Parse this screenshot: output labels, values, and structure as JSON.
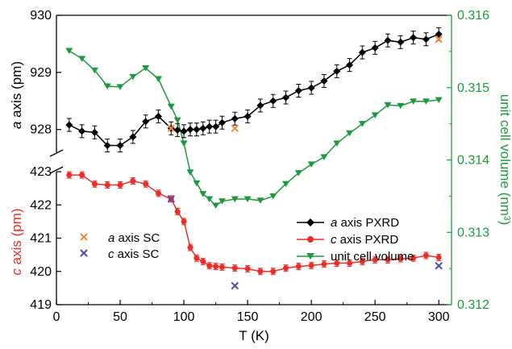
{
  "chart_data": {
    "type": "line",
    "xlabel": "T (K)",
    "xlim": [
      0,
      310
    ],
    "x_ticks": [
      "0",
      "50",
      "100",
      "150",
      "200",
      "250",
      "300"
    ],
    "panels": {
      "a_axis": {
        "ylabel_italic": "a",
        "ylabel_rest": " axis (pm)",
        "ylim": [
          927.6,
          930
        ],
        "y_ticks": [
          "928",
          "929",
          "930"
        ]
      },
      "c_axis": {
        "ylabel_italic": "c",
        "ylabel_rest": " axis (pm)",
        "ylim": [
          419,
          423
        ],
        "y_ticks": [
          "419",
          "420",
          "421",
          "422",
          "423"
        ]
      }
    },
    "right_axis": {
      "ylabel": "unit cell volume (nm³)",
      "ylim": [
        0.312,
        0.316
      ],
      "y_ticks": [
        "0.312",
        "0.313",
        "0.314",
        "0.315",
        "0.316"
      ]
    },
    "series": [
      {
        "name_italic": "a",
        "name_rest": " axis PXRD",
        "axis": "a_axis",
        "color": "#000000",
        "marker": "diamond",
        "x": [
          10,
          20,
          30,
          40,
          50,
          60,
          70,
          80,
          90,
          95,
          100,
          105,
          110,
          115,
          120,
          125,
          130,
          140,
          150,
          160,
          170,
          180,
          190,
          200,
          210,
          220,
          230,
          240,
          250,
          260,
          270,
          280,
          290,
          300
        ],
        "y": [
          928.08,
          927.97,
          927.95,
          927.72,
          927.72,
          927.87,
          928.14,
          928.23,
          928.02,
          927.99,
          927.97,
          928.0,
          928.0,
          928.02,
          928.05,
          928.05,
          928.12,
          928.19,
          928.23,
          928.42,
          928.5,
          928.56,
          928.68,
          928.73,
          928.85,
          929.02,
          929.13,
          929.35,
          929.43,
          929.56,
          929.53,
          929.61,
          929.58,
          929.67
        ]
      },
      {
        "name_italic": "c",
        "name_rest": " axis PXRD",
        "axis": "c_axis",
        "color": "#ee2b24",
        "marker": "circle",
        "x": [
          10,
          20,
          30,
          40,
          50,
          60,
          70,
          80,
          90,
          95,
          100,
          105,
          110,
          115,
          120,
          125,
          130,
          140,
          150,
          160,
          170,
          180,
          190,
          200,
          210,
          220,
          230,
          240,
          250,
          260,
          270,
          280,
          290,
          300
        ],
        "y": [
          422.9,
          422.9,
          422.63,
          422.6,
          422.6,
          422.72,
          422.63,
          422.35,
          422.18,
          421.8,
          421.5,
          420.72,
          420.4,
          420.3,
          420.17,
          420.15,
          420.13,
          420.1,
          420.08,
          420.0,
          420.0,
          420.1,
          420.15,
          420.18,
          420.22,
          420.25,
          420.25,
          420.3,
          420.35,
          420.35,
          420.38,
          420.4,
          420.48,
          420.42
        ]
      },
      {
        "name": "unit cell volume",
        "axis": "right_axis",
        "color": "#1a9a3a",
        "marker": "triangle-down",
        "x": [
          10,
          20,
          30,
          40,
          50,
          60,
          70,
          80,
          90,
          95,
          100,
          105,
          110,
          115,
          120,
          125,
          130,
          140,
          150,
          160,
          170,
          180,
          190,
          200,
          210,
          220,
          230,
          240,
          250,
          260,
          270,
          280,
          290,
          300
        ],
        "y": [
          0.31551,
          0.3154,
          0.31524,
          0.31502,
          0.31501,
          0.31515,
          0.31527,
          0.31512,
          0.31474,
          0.31455,
          0.31423,
          0.31383,
          0.31368,
          0.31353,
          0.31346,
          0.31337,
          0.31343,
          0.31346,
          0.31346,
          0.31344,
          0.3135,
          0.31367,
          0.31382,
          0.31394,
          0.31404,
          0.31423,
          0.31437,
          0.3145,
          0.31462,
          0.31476,
          0.31475,
          0.31481,
          0.31481,
          0.31483
        ]
      },
      {
        "name_italic": "a",
        "name_rest": " axis SC",
        "axis": "a_axis",
        "color": "#f08a3c",
        "marker": "x",
        "x": [
          90,
          140,
          300
        ],
        "y": [
          928.02,
          928.02,
          929.58
        ]
      },
      {
        "name_italic": "c",
        "name_rest": " axis SC",
        "axis": "c_axis",
        "color": "#5a48a8",
        "marker": "x",
        "x": [
          90,
          140,
          300
        ],
        "y": [
          422.18,
          419.57,
          420.17
        ]
      }
    ]
  }
}
